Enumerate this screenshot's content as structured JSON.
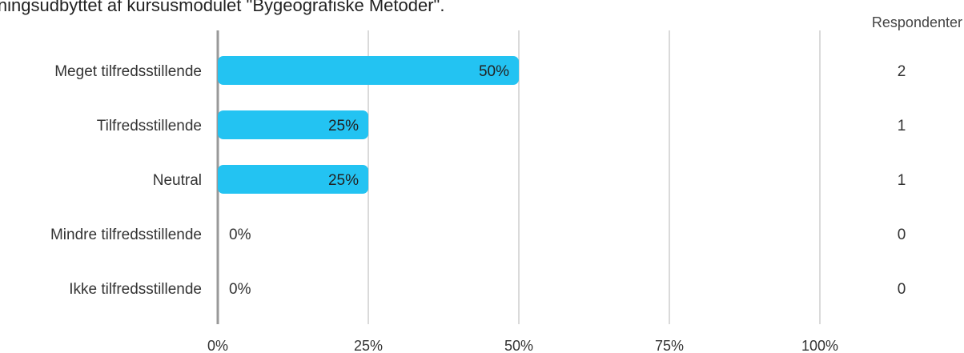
{
  "title": "ærningsudbyttet af kursusmodulet \"Bygeografiske Metoder\".",
  "respondents_header": "Respondenter",
  "colors": {
    "bar": "#23c3f2",
    "grid": "#b5b5b5",
    "axis": "#999999",
    "text": "#333333"
  },
  "chart_data": {
    "type": "bar",
    "orientation": "horizontal",
    "categories": [
      "Meget tilfredsstillende",
      "Tilfredsstillende",
      "Neutral",
      "Mindre tilfredsstillende",
      "Ikke tilfredsstillende"
    ],
    "values": [
      50,
      25,
      25,
      0,
      0
    ],
    "value_labels": [
      "50%",
      "25%",
      "25%",
      "0%",
      "0%"
    ],
    "respondents": [
      2,
      1,
      1,
      0,
      0
    ],
    "xlim": [
      0,
      100
    ],
    "xticks": [
      0,
      25,
      50,
      75,
      100
    ],
    "xtick_labels": [
      "0%",
      "25%",
      "50%",
      "75%",
      "100%"
    ],
    "grid": true
  }
}
